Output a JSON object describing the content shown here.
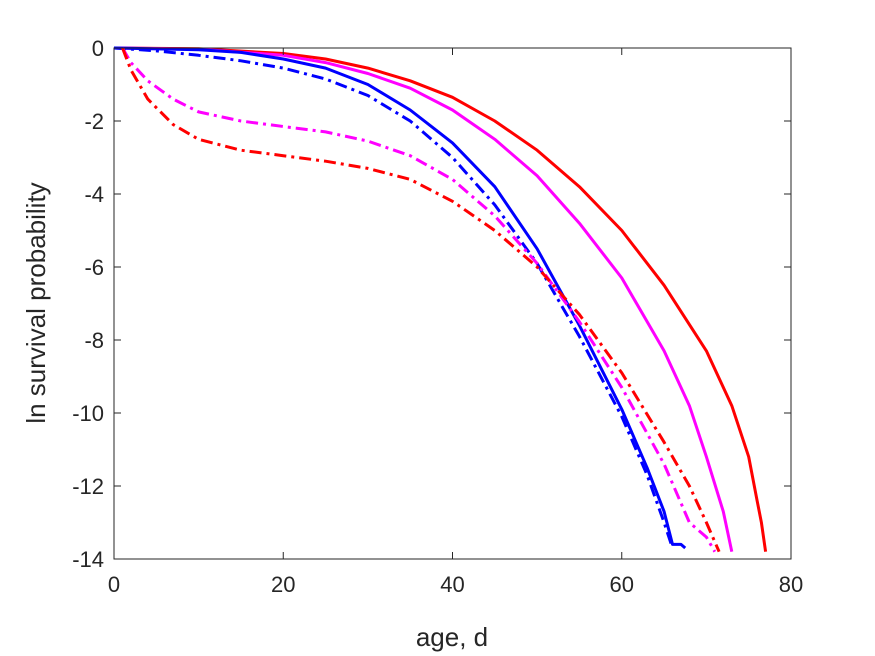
{
  "chart_data": {
    "type": "line",
    "title": "",
    "xlabel": "age, d",
    "ylabel": "ln survival probability",
    "xlim": [
      0,
      80
    ],
    "ylim": [
      -14,
      0
    ],
    "xticks": [
      0,
      20,
      40,
      60,
      80
    ],
    "yticks": [
      0,
      -2,
      -4,
      -6,
      -8,
      -10,
      -12,
      -14
    ],
    "grid": false,
    "legend": "none",
    "series": [
      {
        "color": "#ff0000",
        "style": "solid",
        "points": [
          [
            0,
            0
          ],
          [
            10,
            -0.02
          ],
          [
            20,
            -0.15
          ],
          [
            25,
            -0.3
          ],
          [
            30,
            -0.55
          ],
          [
            35,
            -0.9
          ],
          [
            40,
            -1.35
          ],
          [
            45,
            -2.0
          ],
          [
            50,
            -2.8
          ],
          [
            55,
            -3.8
          ],
          [
            60,
            -5.0
          ],
          [
            65,
            -6.5
          ],
          [
            70,
            -8.3
          ],
          [
            73,
            -9.8
          ],
          [
            75,
            -11.2
          ],
          [
            76,
            -12.4
          ],
          [
            76.5,
            -13.0
          ],
          [
            77,
            -13.8
          ]
        ]
      },
      {
        "color": "#ff00ff",
        "style": "solid",
        "points": [
          [
            0,
            0
          ],
          [
            10,
            -0.03
          ],
          [
            20,
            -0.2
          ],
          [
            25,
            -0.4
          ],
          [
            30,
            -0.7
          ],
          [
            35,
            -1.1
          ],
          [
            40,
            -1.7
          ],
          [
            45,
            -2.5
          ],
          [
            50,
            -3.5
          ],
          [
            55,
            -4.8
          ],
          [
            60,
            -6.3
          ],
          [
            65,
            -8.3
          ],
          [
            68,
            -9.8
          ],
          [
            70,
            -11.2
          ],
          [
            72,
            -12.7
          ],
          [
            73,
            -13.8
          ]
        ]
      },
      {
        "color": "#0000ff",
        "style": "solid",
        "points": [
          [
            0,
            0
          ],
          [
            10,
            -0.05
          ],
          [
            15,
            -0.12
          ],
          [
            20,
            -0.3
          ],
          [
            25,
            -0.55
          ],
          [
            30,
            -1.0
          ],
          [
            35,
            -1.7
          ],
          [
            40,
            -2.6
          ],
          [
            45,
            -3.8
          ],
          [
            50,
            -5.5
          ],
          [
            55,
            -7.6
          ],
          [
            60,
            -9.9
          ],
          [
            63,
            -11.5
          ],
          [
            65,
            -12.7
          ],
          [
            66,
            -13.6
          ],
          [
            67,
            -13.6
          ],
          [
            67.5,
            -13.7
          ]
        ]
      },
      {
        "color": "#0000ff",
        "style": "dashdot",
        "points": [
          [
            0,
            0
          ],
          [
            2,
            -0.03
          ],
          [
            5,
            -0.08
          ],
          [
            10,
            -0.2
          ],
          [
            15,
            -0.35
          ],
          [
            20,
            -0.55
          ],
          [
            25,
            -0.85
          ],
          [
            30,
            -1.3
          ],
          [
            35,
            -2.0
          ],
          [
            40,
            -3.0
          ],
          [
            45,
            -4.3
          ],
          [
            50,
            -5.9
          ],
          [
            55,
            -7.9
          ],
          [
            60,
            -10.1
          ],
          [
            63,
            -11.7
          ],
          [
            65,
            -13.0
          ],
          [
            66,
            -13.7
          ]
        ]
      },
      {
        "color": "#ff00ff",
        "style": "dashdot",
        "points": [
          [
            1,
            0
          ],
          [
            2,
            -0.4
          ],
          [
            4,
            -0.9
          ],
          [
            7,
            -1.4
          ],
          [
            10,
            -1.75
          ],
          [
            15,
            -2.0
          ],
          [
            20,
            -2.15
          ],
          [
            25,
            -2.3
          ],
          [
            30,
            -2.55
          ],
          [
            35,
            -2.95
          ],
          [
            40,
            -3.6
          ],
          [
            45,
            -4.6
          ],
          [
            50,
            -5.9
          ],
          [
            55,
            -7.5
          ],
          [
            60,
            -9.3
          ],
          [
            65,
            -11.4
          ],
          [
            68,
            -13.0
          ],
          [
            69,
            -13.2
          ],
          [
            70,
            -13.4
          ],
          [
            71,
            -13.8
          ]
        ]
      },
      {
        "color": "#ff0000",
        "style": "dashdot",
        "points": [
          [
            1,
            0
          ],
          [
            2,
            -0.6
          ],
          [
            4,
            -1.4
          ],
          [
            7,
            -2.1
          ],
          [
            10,
            -2.5
          ],
          [
            15,
            -2.8
          ],
          [
            20,
            -2.95
          ],
          [
            25,
            -3.1
          ],
          [
            30,
            -3.3
          ],
          [
            35,
            -3.6
          ],
          [
            40,
            -4.2
          ],
          [
            45,
            -5.0
          ],
          [
            50,
            -6.0
          ],
          [
            55,
            -7.3
          ],
          [
            60,
            -8.9
          ],
          [
            65,
            -10.8
          ],
          [
            68,
            -12.0
          ],
          [
            70,
            -13.0
          ],
          [
            71.5,
            -13.8
          ]
        ]
      }
    ]
  }
}
